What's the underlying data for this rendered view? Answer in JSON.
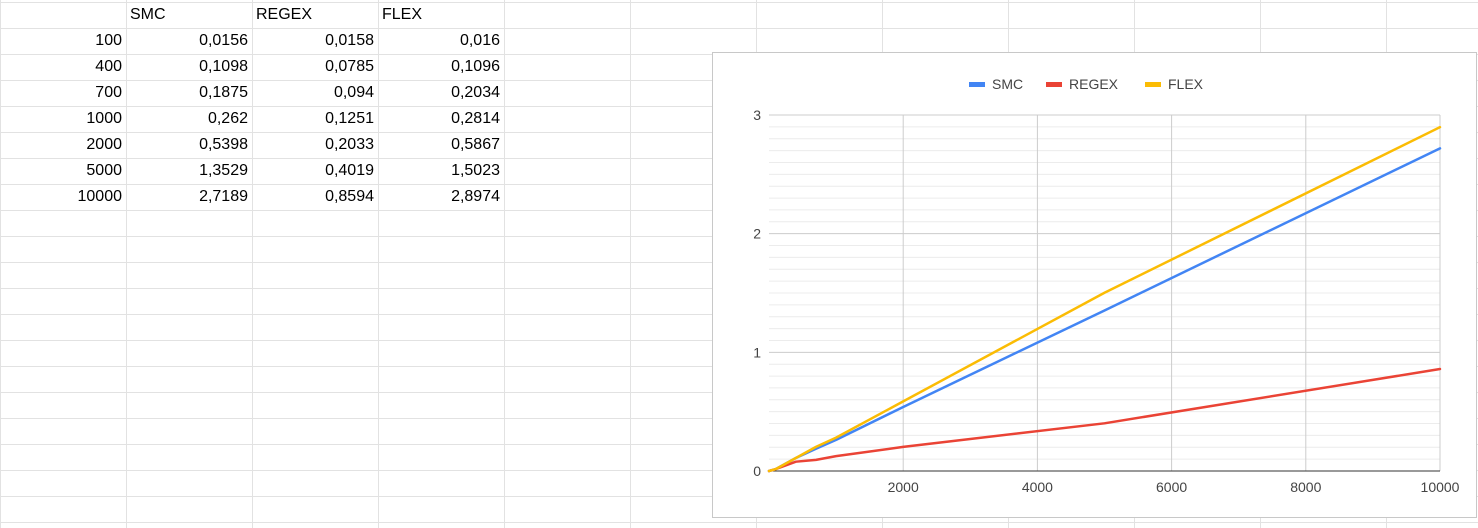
{
  "sheet": {
    "headers": [
      "",
      "SMC",
      "REGEX",
      "FLEX"
    ],
    "rows": [
      [
        "100",
        "0,0156",
        "0,0158",
        "0,016"
      ],
      [
        "400",
        "0,1098",
        "0,0785",
        "0,1096"
      ],
      [
        "700",
        "0,1875",
        "0,094",
        "0,2034"
      ],
      [
        "1000",
        "0,262",
        "0,1251",
        "0,2814"
      ],
      [
        "2000",
        "0,5398",
        "0,2033",
        "0,5867"
      ],
      [
        "5000",
        "1,3529",
        "0,4019",
        "1,5023"
      ],
      [
        "10000",
        "2,7189",
        "0,8594",
        "2,8974"
      ]
    ]
  },
  "chart_data": {
    "type": "line",
    "title": "",
    "xlabel": "",
    "ylabel": "",
    "x": [
      0,
      100,
      400,
      700,
      1000,
      2000,
      5000,
      10000
    ],
    "xlim": [
      0,
      10000
    ],
    "ylim": [
      0,
      3
    ],
    "xticks": [
      "2000",
      "4000",
      "6000",
      "8000",
      "10000"
    ],
    "yticks": [
      "0",
      "1",
      "2",
      "3"
    ],
    "grid": true,
    "legend_position": "top",
    "series": [
      {
        "name": "SMC",
        "color": "#4285f4",
        "values": [
          0,
          0.0156,
          0.1098,
          0.1875,
          0.262,
          0.5398,
          1.3529,
          2.7189
        ]
      },
      {
        "name": "REGEX",
        "color": "#ea4335",
        "values": [
          0,
          0.0158,
          0.0785,
          0.094,
          0.1251,
          0.2033,
          0.4019,
          0.8594
        ]
      },
      {
        "name": "FLEX",
        "color": "#fbbc04",
        "values": [
          0,
          0.016,
          0.1096,
          0.2034,
          0.2814,
          0.5867,
          1.5023,
          2.8974
        ]
      }
    ]
  }
}
